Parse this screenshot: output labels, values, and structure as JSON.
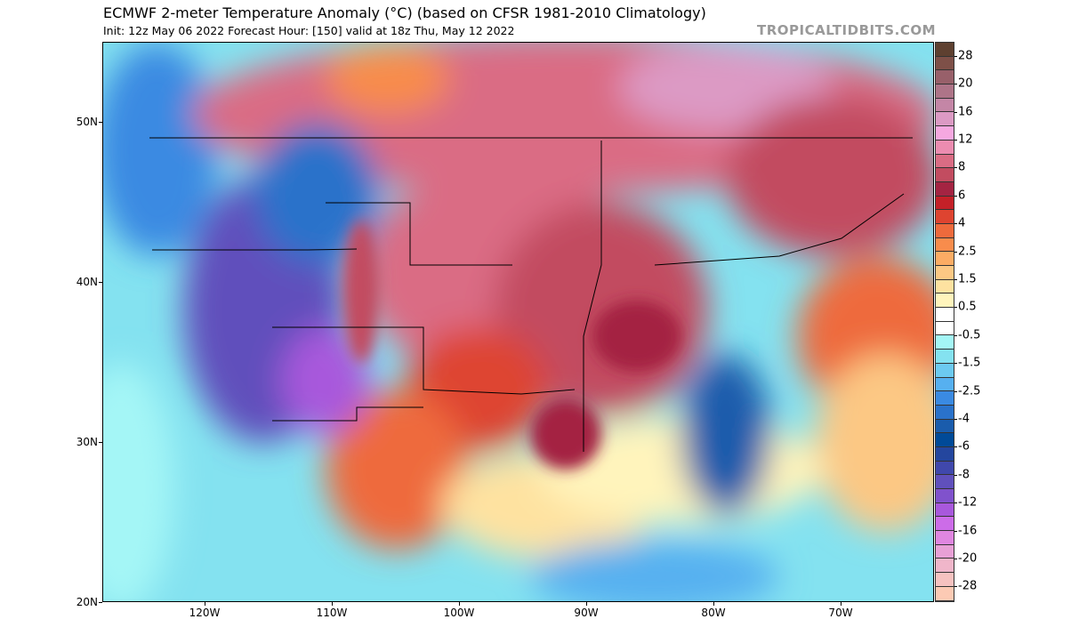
{
  "header": {
    "title": "ECMWF 2-meter Temperature Anomaly (°C) (based on CFSR 1981-2010 Climatology)",
    "subtitle": "Init: 12z May 06 2022   Forecast Hour: [150]   valid at 18z Thu, May 12 2022",
    "brand": "TROPICALTIDBITS.COM"
  },
  "colorbar": {
    "labels": [
      "28",
      "20",
      "16",
      "12",
      "8",
      "6",
      "4",
      "2.5",
      "1.5",
      "0.5",
      "-0.5",
      "-1.5",
      "-2.5",
      "-4",
      "-6",
      "-8",
      "-12",
      "-16",
      "-20",
      "-28"
    ],
    "colors": [
      "#5e4030",
      "#7e5048",
      "#98606a",
      "#ae7488",
      "#c486a6",
      "#dc9ac4",
      "#f6a8e0",
      "#ec8cb0",
      "#da6c84",
      "#c24c60",
      "#a42442",
      "#c42028",
      "#de4430",
      "#ee6a3c",
      "#f88c4c",
      "#fcac64",
      "#fcc884",
      "#fee2a0",
      "#fff4bc",
      "#ffffff",
      "#ffffff",
      "#a4f6f6",
      "#84e2f0",
      "#6ccaf0",
      "#56b0f0",
      "#3a8ae2",
      "#2a72ca",
      "#1a5cac",
      "#004a98",
      "#24469e",
      "#4048ac",
      "#6050bc",
      "#8052cc",
      "#a858dc",
      "#cc6ce8",
      "#e086e0",
      "#e8a0d6",
      "#f0b6ca",
      "#f6c2c0",
      "#fccab4"
    ]
  },
  "axes": {
    "lat_labels": [
      "50N",
      "40N",
      "30N",
      "20N"
    ],
    "lon_labels": [
      "120W",
      "110W",
      "100W",
      "90W",
      "80W",
      "70W"
    ]
  }
}
